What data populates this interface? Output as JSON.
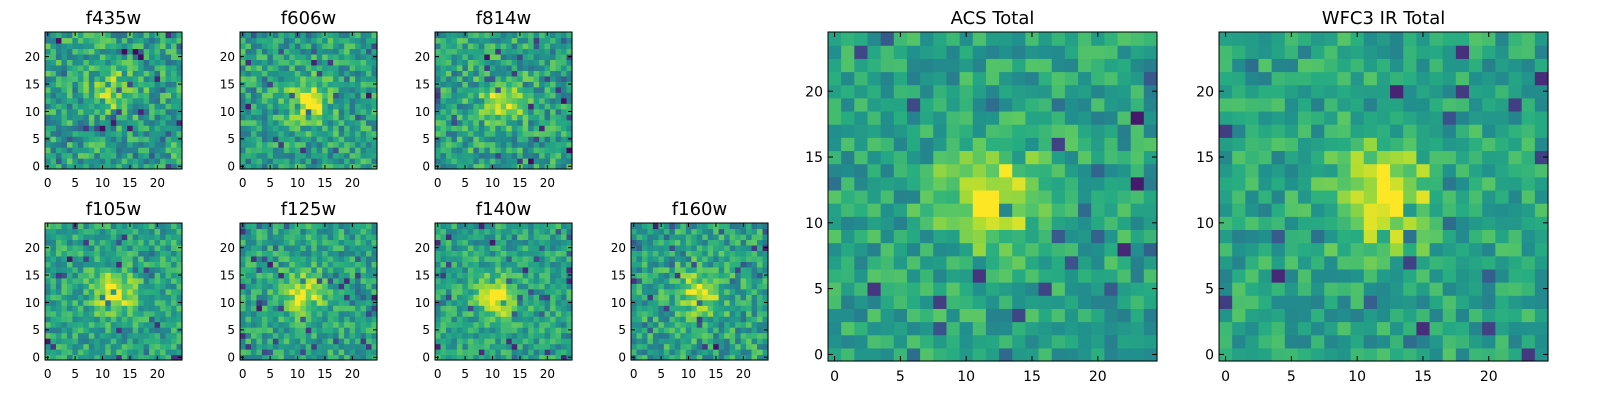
{
  "chart_data": [
    {
      "type": "heatmap",
      "title": "f435w",
      "colormap": "viridis",
      "grid": false,
      "size": [
        25,
        25
      ],
      "xlim": [
        0,
        25
      ],
      "ylim": [
        0,
        25
      ],
      "xticks": [
        0,
        5,
        10,
        15,
        20
      ],
      "yticks": [
        0,
        5,
        10,
        15,
        20
      ],
      "source_center": [
        12,
        14
      ],
      "source_strength": 0.28,
      "noise_level": 0.42,
      "seed": 11
    },
    {
      "type": "heatmap",
      "title": "f606w",
      "colormap": "viridis",
      "grid": false,
      "size": [
        25,
        25
      ],
      "xlim": [
        0,
        25
      ],
      "ylim": [
        0,
        25
      ],
      "xticks": [
        0,
        5,
        10,
        15,
        20
      ],
      "yticks": [
        0,
        5,
        10,
        15,
        20
      ],
      "source_center": [
        12,
        12
      ],
      "source_strength": 0.38,
      "noise_level": 0.38,
      "seed": 23
    },
    {
      "type": "heatmap",
      "title": "f814w",
      "colormap": "viridis",
      "grid": false,
      "size": [
        25,
        25
      ],
      "xlim": [
        0,
        25
      ],
      "ylim": [
        0,
        25
      ],
      "xticks": [
        0,
        5,
        10,
        15,
        20
      ],
      "yticks": [
        0,
        5,
        10,
        15,
        20
      ],
      "source_center": [
        12,
        12
      ],
      "source_strength": 0.36,
      "noise_level": 0.4,
      "seed": 37
    },
    {
      "type": "heatmap",
      "title": "f105w",
      "colormap": "viridis",
      "grid": false,
      "size": [
        25,
        25
      ],
      "xlim": [
        0,
        25
      ],
      "ylim": [
        0,
        25
      ],
      "xticks": [
        0,
        5,
        10,
        15,
        20
      ],
      "yticks": [
        0,
        5,
        10,
        15,
        20
      ],
      "source_center": [
        12,
        12
      ],
      "source_strength": 0.4,
      "noise_level": 0.34,
      "seed": 41
    },
    {
      "type": "heatmap",
      "title": "f125w",
      "colormap": "viridis",
      "grid": false,
      "size": [
        25,
        25
      ],
      "xlim": [
        0,
        25
      ],
      "ylim": [
        0,
        25
      ],
      "xticks": [
        0,
        5,
        10,
        15,
        20
      ],
      "yticks": [
        0,
        5,
        10,
        15,
        20
      ],
      "source_center": [
        11,
        12
      ],
      "source_strength": 0.38,
      "noise_level": 0.34,
      "seed": 53
    },
    {
      "type": "heatmap",
      "title": "f140w",
      "colormap": "viridis",
      "grid": false,
      "size": [
        25,
        25
      ],
      "xlim": [
        0,
        25
      ],
      "ylim": [
        0,
        25
      ],
      "xticks": [
        0,
        5,
        10,
        15,
        20
      ],
      "yticks": [
        0,
        5,
        10,
        15,
        20
      ],
      "source_center": [
        11,
        11
      ],
      "source_strength": 0.42,
      "noise_level": 0.32,
      "seed": 67
    },
    {
      "type": "heatmap",
      "title": "f160w",
      "colormap": "viridis",
      "grid": false,
      "size": [
        25,
        25
      ],
      "xlim": [
        0,
        25
      ],
      "ylim": [
        0,
        25
      ],
      "xticks": [
        0,
        5,
        10,
        15,
        20
      ],
      "yticks": [
        0,
        5,
        10,
        15,
        20
      ],
      "source_center": [
        12,
        12
      ],
      "source_strength": 0.36,
      "noise_level": 0.38,
      "seed": 79
    },
    {
      "type": "heatmap",
      "title": "ACS Total",
      "colormap": "viridis",
      "grid": false,
      "size": [
        25,
        25
      ],
      "xlim": [
        0,
        25
      ],
      "ylim": [
        0,
        25
      ],
      "xticks": [
        0,
        5,
        10,
        15,
        20
      ],
      "yticks": [
        0,
        5,
        10,
        15,
        20
      ],
      "source_center": [
        12,
        12
      ],
      "source_strength": 0.42,
      "noise_level": 0.32,
      "seed": 97
    },
    {
      "type": "heatmap",
      "title": "WFC3 IR Total",
      "colormap": "viridis",
      "grid": false,
      "size": [
        25,
        25
      ],
      "xlim": [
        0,
        25
      ],
      "ylim": [
        0,
        25
      ],
      "xticks": [
        0,
        5,
        10,
        15,
        20
      ],
      "yticks": [
        0,
        5,
        10,
        15,
        20
      ],
      "source_center": [
        12,
        12
      ],
      "source_strength": 0.45,
      "noise_level": 0.3,
      "seed": 113
    }
  ]
}
